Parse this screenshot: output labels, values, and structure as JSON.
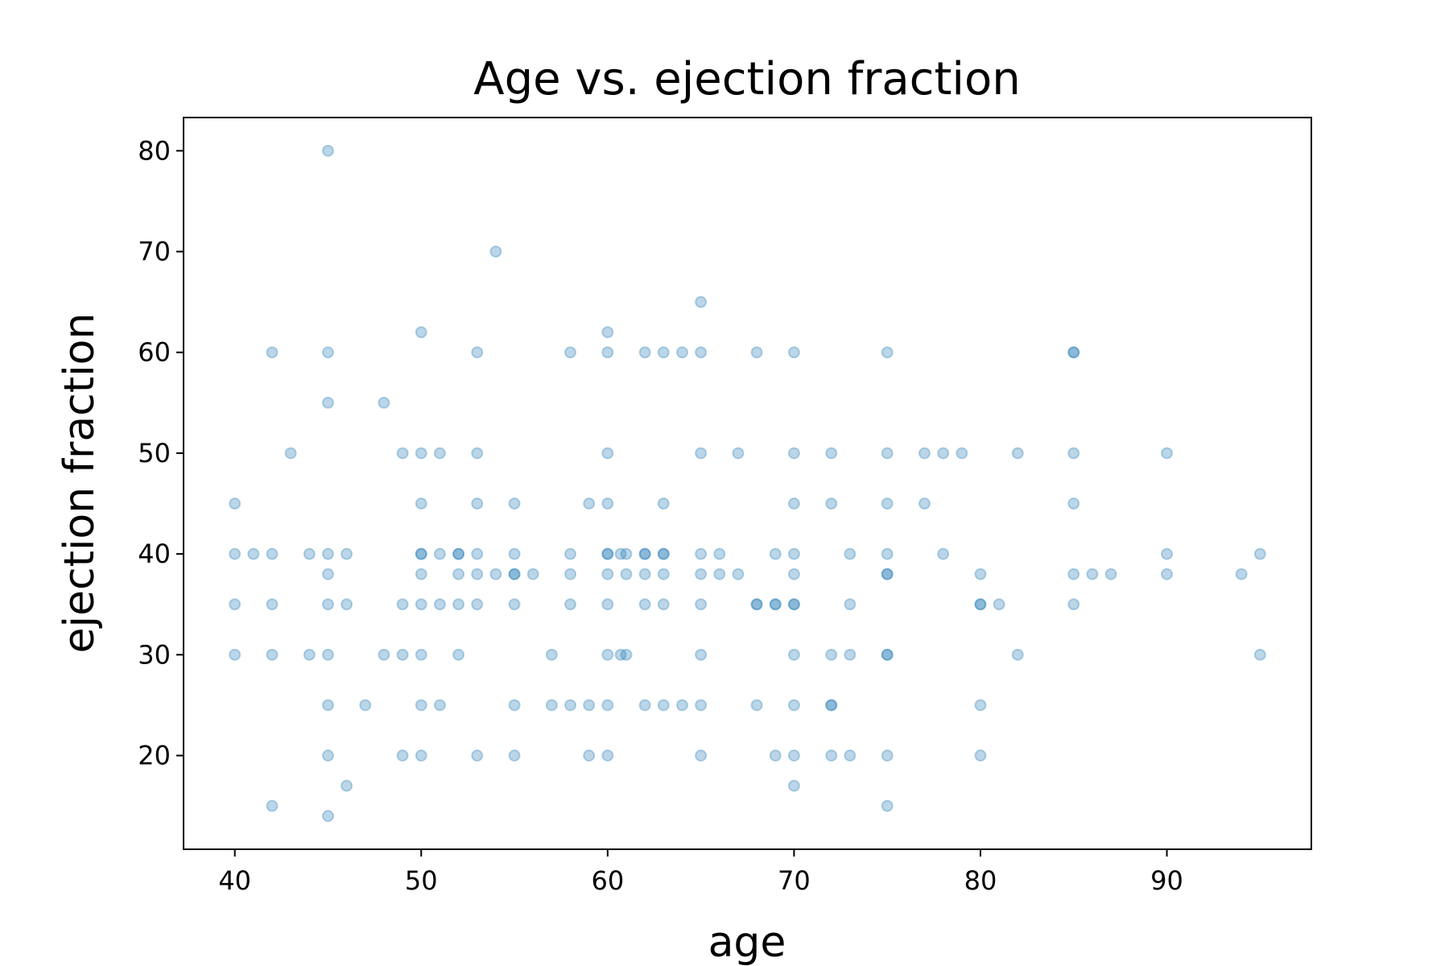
{
  "chart_data": {
    "type": "scatter",
    "title": "Age vs. ejection fraction",
    "xlabel": "age",
    "ylabel": "ejection fraction",
    "xlim": [
      37.25,
      97.75
    ],
    "ylim": [
      10.7,
      83.3
    ],
    "xticks": [
      40,
      50,
      60,
      70,
      80,
      90
    ],
    "yticks": [
      20,
      30,
      40,
      50,
      60,
      70,
      80
    ],
    "grid": false,
    "legend": "none",
    "colors": {
      "marker": "#1f77b4",
      "frame": "#000000"
    },
    "marker_opacity": 0.3,
    "series": [
      {
        "x": [
          40,
          40,
          40,
          40,
          41,
          42,
          42,
          42,
          42,
          42,
          43,
          44,
          44,
          45,
          45,
          45,
          45,
          45,
          45,
          45,
          45,
          45,
          45,
          46,
          46,
          46,
          47,
          48,
          48,
          49,
          49,
          49,
          49,
          50,
          50,
          50,
          50,
          50,
          50,
          50,
          50,
          50,
          50,
          51,
          51,
          51,
          51,
          52,
          52,
          52,
          52,
          52,
          53,
          53,
          53,
          53,
          53,
          53,
          53,
          54,
          54,
          55,
          55,
          55,
          55,
          55,
          55,
          55,
          56,
          57,
          57,
          58,
          58,
          58,
          58,
          58,
          59,
          59,
          59,
          60,
          60,
          60,
          60,
          60,
          60,
          60,
          60,
          60,
          60,
          60,
          60.7,
          60.7,
          61,
          61,
          61,
          62,
          62,
          62,
          62,
          62,
          62,
          63,
          63,
          63,
          63,
          63,
          63,
          63,
          64,
          64,
          65,
          65,
          65,
          65,
          65,
          65,
          65,
          65,
          65,
          66,
          66,
          67,
          67,
          68,
          68,
          68,
          68,
          69,
          69,
          69,
          69,
          70,
          70,
          70,
          70,
          70,
          70,
          70,
          70,
          70,
          70,
          70,
          72,
          72,
          72,
          72,
          72,
          72,
          73,
          73,
          73,
          73,
          75,
          75,
          75,
          75,
          75,
          75,
          75,
          75,
          75,
          75,
          77,
          77,
          78,
          78,
          79,
          80,
          80,
          80,
          80,
          80,
          81,
          82,
          82,
          85,
          85,
          85,
          85,
          85,
          85,
          86,
          87,
          90,
          90,
          90,
          94,
          95,
          95
        ],
        "y": [
          45,
          40,
          35,
          30,
          40,
          60,
          40,
          35,
          30,
          15,
          50,
          40,
          30,
          80,
          60,
          55,
          38,
          35,
          30,
          25,
          20,
          14,
          40,
          40,
          35,
          17,
          25,
          55,
          30,
          50,
          35,
          30,
          20,
          62,
          50,
          45,
          40,
          38,
          35,
          30,
          25,
          20,
          40,
          50,
          40,
          35,
          25,
          40,
          38,
          35,
          30,
          40,
          60,
          50,
          45,
          40,
          38,
          35,
          20,
          38,
          70,
          45,
          40,
          38,
          35,
          25,
          20,
          38,
          38,
          30,
          25,
          60,
          40,
          38,
          35,
          25,
          45,
          25,
          20,
          62,
          60,
          50,
          45,
          40,
          38,
          35,
          30,
          25,
          20,
          40,
          40,
          30,
          40,
          38,
          30,
          60,
          40,
          38,
          35,
          25,
          40,
          60,
          45,
          40,
          38,
          35,
          25,
          40,
          60,
          25,
          65,
          60,
          50,
          40,
          38,
          35,
          30,
          25,
          20,
          40,
          38,
          50,
          38,
          60,
          35,
          25,
          35,
          40,
          35,
          20,
          35,
          60,
          50,
          45,
          40,
          38,
          35,
          30,
          25,
          20,
          17,
          35,
          50,
          45,
          30,
          25,
          20,
          25,
          40,
          35,
          30,
          20,
          60,
          50,
          45,
          40,
          38,
          30,
          20,
          15,
          38,
          30,
          50,
          45,
          50,
          40,
          50,
          38,
          35,
          25,
          20,
          35,
          35,
          50,
          30,
          60,
          50,
          45,
          38,
          35,
          60,
          38,
          38,
          50,
          40,
          38,
          38,
          40,
          30
        ]
      }
    ]
  }
}
